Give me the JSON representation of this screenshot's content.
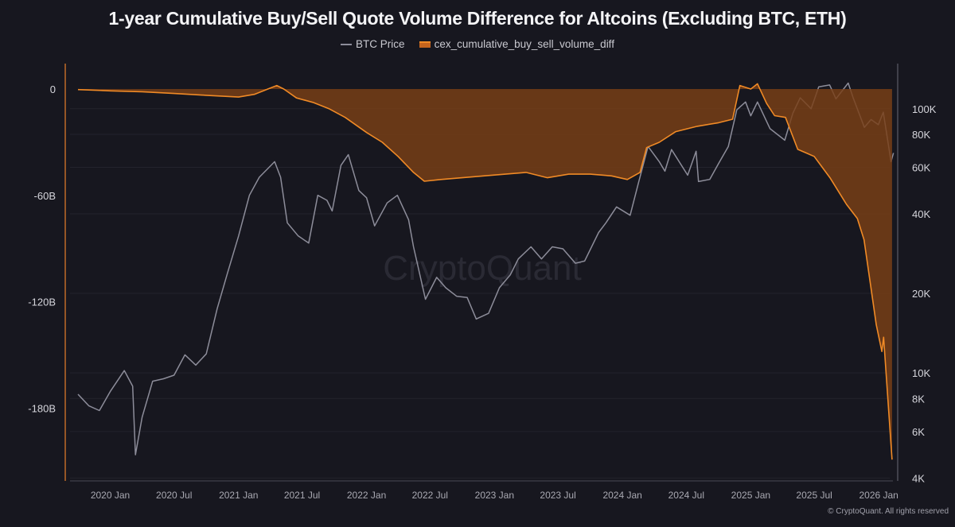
{
  "chart_data": {
    "type": "area",
    "title": "1-year Cumulative Buy/Sell Quote Volume Difference for Altcoins (Excluding BTC, ETH)",
    "legend_placement": "top-center",
    "watermark": "CryptoQuant",
    "copyright": "© CryptoQuant. All rights reserved",
    "colors": {
      "background": "#17171f",
      "btc_line": "#8d8d9a",
      "cex_line": "#f08a26",
      "cex_fill": "#7a3f16"
    },
    "x_ticks": [
      "2020 Jan",
      "2020 Jul",
      "2021 Jan",
      "2021 Jul",
      "2022 Jan",
      "2022 Jul",
      "2023 Jan",
      "2023 Jul",
      "2024 Jan",
      "2024 Jul",
      "2025 Jan",
      "2025 Jul",
      "2026 Jan"
    ],
    "x_tick_dates": [
      "2020-01-01",
      "2020-07-01",
      "2021-01-01",
      "2021-07-01",
      "2022-01-01",
      "2022-07-01",
      "2023-01-01",
      "2023-07-01",
      "2024-01-01",
      "2024-07-01",
      "2025-01-01",
      "2025-07-01",
      "2026-01-01"
    ],
    "x_range": [
      "2019-10-01",
      "2026-02-15"
    ],
    "y_left": {
      "ticks": [
        0,
        -60,
        -120,
        -180
      ],
      "tick_labels": [
        "0",
        "-60B",
        "-120B",
        "-180B"
      ],
      "range": [
        -221,
        5.4
      ],
      "unit": "B"
    },
    "y_right": {
      "scale": "log",
      "ticks": [
        100000,
        80000,
        60000,
        40000,
        20000,
        10000,
        8000,
        6000,
        4000
      ],
      "tick_labels": [
        "100K",
        "80K",
        "60K",
        "40K",
        "20K",
        "10K",
        "8K",
        "6K",
        "4K"
      ],
      "range": [
        3900,
        129000
      ]
    },
    "grid": "horizontal",
    "series": [
      {
        "name": "BTC Price",
        "axis": "right",
        "type": "line",
        "dates": [
          "2019-10-01",
          "2019-11-01",
          "2019-12-01",
          "2020-01-01",
          "2020-02-10",
          "2020-03-05",
          "2020-03-13",
          "2020-04-01",
          "2020-05-01",
          "2020-06-01",
          "2020-07-01",
          "2020-08-01",
          "2020-09-01",
          "2020-10-01",
          "2020-11-01",
          "2020-12-01",
          "2021-01-01",
          "2021-02-01",
          "2021-03-01",
          "2021-04-14",
          "2021-05-01",
          "2021-05-20",
          "2021-06-20",
          "2021-07-20",
          "2021-08-15",
          "2021-09-10",
          "2021-09-25",
          "2021-10-20",
          "2021-11-10",
          "2021-12-10",
          "2022-01-01",
          "2022-01-24",
          "2022-03-01",
          "2022-03-30",
          "2022-05-01",
          "2022-05-15",
          "2022-06-18",
          "2022-07-20",
          "2022-08-15",
          "2022-09-15",
          "2022-10-15",
          "2022-11-10",
          "2022-12-15",
          "2023-01-15",
          "2023-02-15",
          "2023-03-10",
          "2023-04-15",
          "2023-05-15",
          "2023-06-15",
          "2023-07-15",
          "2023-08-20",
          "2023-09-15",
          "2023-10-25",
          "2023-11-15",
          "2023-12-15",
          "2024-01-23",
          "2024-02-15",
          "2024-03-14",
          "2024-04-15",
          "2024-05-01",
          "2024-05-20",
          "2024-07-05",
          "2024-07-29",
          "2024-08-05",
          "2024-09-06",
          "2024-10-01",
          "2024-10-29",
          "2024-11-22",
          "2024-12-17",
          "2025-01-01",
          "2025-01-20",
          "2025-02-25",
          "2025-04-08",
          "2025-05-01",
          "2025-05-22",
          "2025-06-22",
          "2025-07-14",
          "2025-08-14",
          "2025-09-01",
          "2025-10-06",
          "2025-10-20",
          "2025-11-21",
          "2025-12-10",
          "2025-12-31",
          "2026-01-14",
          "2026-02-05",
          "2026-02-12"
        ],
        "values": [
          8300,
          7500,
          7200,
          8500,
          10200,
          8900,
          4900,
          6800,
          9300,
          9500,
          9800,
          11700,
          10700,
          11800,
          17500,
          24000,
          33000,
          47000,
          55000,
          63000,
          55000,
          37000,
          33000,
          31000,
          47000,
          45000,
          41000,
          61000,
          67000,
          49000,
          46000,
          36000,
          44000,
          47000,
          38000,
          30000,
          19000,
          23000,
          21000,
          19500,
          19300,
          16000,
          16800,
          21000,
          23500,
          27000,
          30000,
          27000,
          30000,
          29500,
          26000,
          26500,
          34000,
          37000,
          42500,
          39500,
          52000,
          72000,
          63000,
          58000,
          70000,
          56000,
          69000,
          53000,
          54000,
          62000,
          72000,
          99000,
          106000,
          94000,
          106000,
          84000,
          76000,
          96000,
          110000,
          100000,
          121000,
          123000,
          109000,
          125000,
          110000,
          85000,
          91000,
          87000,
          97000,
          63000,
          68000
        ]
      },
      {
        "name": "cex_cumulative_buy_sell_volume_diff",
        "axis": "left",
        "type": "area",
        "unit": "B",
        "dates": [
          "2019-10-01",
          "2020-01-01",
          "2020-04-01",
          "2020-07-01",
          "2020-10-01",
          "2021-01-01",
          "2021-02-15",
          "2021-04-01",
          "2021-04-20",
          "2021-05-10",
          "2021-06-15",
          "2021-08-01",
          "2021-09-15",
          "2021-11-01",
          "2022-01-01",
          "2022-02-15",
          "2022-04-01",
          "2022-05-15",
          "2022-06-15",
          "2022-08-01",
          "2022-10-01",
          "2022-12-01",
          "2023-02-01",
          "2023-04-01",
          "2023-06-01",
          "2023-08-01",
          "2023-10-01",
          "2023-12-01",
          "2024-01-15",
          "2024-02-20",
          "2024-03-10",
          "2024-04-15",
          "2024-06-01",
          "2024-08-01",
          "2024-10-01",
          "2024-11-10",
          "2024-12-01",
          "2025-01-01",
          "2025-01-20",
          "2025-02-15",
          "2025-03-10",
          "2025-04-10",
          "2025-05-15",
          "2025-07-01",
          "2025-08-15",
          "2025-10-01",
          "2025-11-01",
          "2025-11-20",
          "2025-12-25",
          "2026-01-10",
          "2026-01-15",
          "2026-02-08"
        ],
        "values": [
          -0.3,
          -1,
          -1.5,
          -2.5,
          -3.5,
          -4.5,
          -3,
          0.5,
          2,
          0,
          -5,
          -7.5,
          -11,
          -16,
          -24.5,
          -30,
          -38,
          -47,
          -52,
          -51,
          -50,
          -49,
          -48,
          -47,
          -50,
          -48,
          -48,
          -49,
          -51,
          -47,
          -33,
          -30,
          -24,
          -21,
          -19,
          -17,
          2,
          0,
          3,
          -8,
          -15,
          -16,
          -34,
          -38,
          -50,
          -65,
          -73,
          -85,
          -133,
          -148,
          -140,
          -209
        ]
      }
    ]
  }
}
